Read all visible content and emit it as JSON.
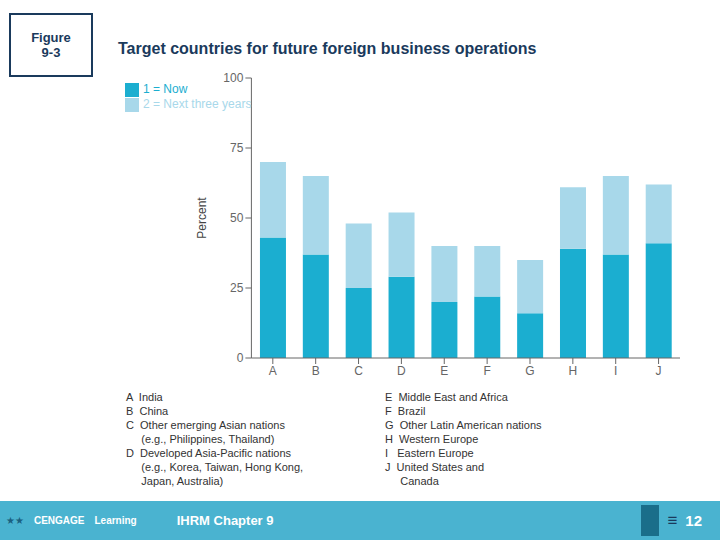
{
  "chart_data": {
    "type": "bar",
    "stacked": true,
    "title": "Target countries for future foreign business operations",
    "ylabel": "Percent",
    "categories": [
      "A",
      "B",
      "C",
      "D",
      "E",
      "F",
      "G",
      "H",
      "I",
      "J"
    ],
    "series": [
      {
        "name": "1 = Now",
        "color": "#1BAED0",
        "values": [
          43,
          37,
          25,
          29,
          20,
          22,
          16,
          39,
          37,
          41
        ]
      },
      {
        "name": "2 = Next three years",
        "color": "#A8D8EA",
        "values": [
          27,
          28,
          23,
          23,
          20,
          18,
          19,
          22,
          28,
          21
        ]
      }
    ],
    "ylim": [
      0,
      100
    ],
    "yticks": [
      0,
      25,
      50,
      75,
      100
    ],
    "grid": false,
    "legend": "upper left",
    "annotations": {
      "left": [
        "A  India",
        "B  China",
        "C  Other emerging Asian nations",
        "     (e.g., Philippines, Thailand)",
        "D  Developed Asia-Pacific nations",
        "     (e.g., Korea, Taiwan, Hong Kong,",
        "     Japan, Australia)"
      ],
      "right": [
        "E  Middle East and Africa",
        "F  Brazil",
        "G  Other Latin American nations",
        "H  Western Europe",
        "I   Eastern Europe",
        "J  United States and",
        "     Canada"
      ],
      "figure_label": "Figure\n9-3",
      "footer_left": [
        "★★",
        "CENGAGE",
        "Learning",
        "IHRM Chapter 9"
      ],
      "footer_right": [
        "≡",
        "12"
      ]
    }
  }
}
